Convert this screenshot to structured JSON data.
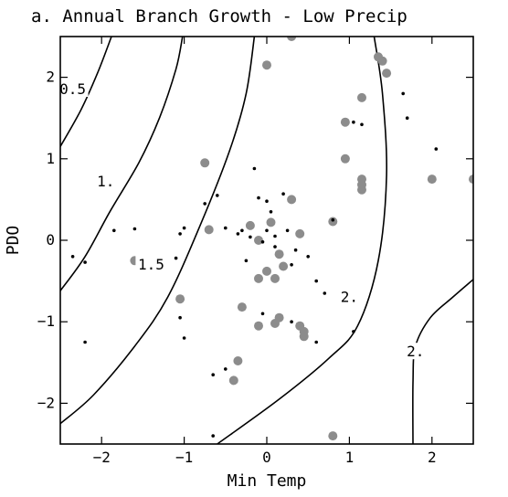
{
  "chart_data": {
    "type": "scatter",
    "title": "a. Annual Branch Growth - Low Precip",
    "xlabel": "Min Temp",
    "ylabel": "PDO",
    "xlim": [
      -2.5,
      2.5
    ],
    "ylim": [
      -2.5,
      2.5
    ],
    "xticks": [
      -2,
      -1,
      0,
      1,
      2
    ],
    "yticks": [
      -2,
      -1,
      0,
      1,
      2
    ],
    "xtick_labels": [
      "−2",
      "−1",
      "0",
      "1",
      "2"
    ],
    "ytick_labels": [
      "−2",
      "−1",
      "0",
      "1",
      "2"
    ],
    "grid": false,
    "contours": [
      {
        "label": "0.5",
        "label_at": [
          -2.35,
          1.85
        ],
        "points": [
          [
            -2.5,
            1.15
          ],
          [
            -2.25,
            1.6
          ],
          [
            -2.05,
            2.05
          ],
          [
            -1.88,
            2.5
          ]
        ]
      },
      {
        "label": "1.",
        "label_at": [
          -1.95,
          0.72
        ],
        "points": [
          [
            -2.5,
            -0.62
          ],
          [
            -2.2,
            -0.2
          ],
          [
            -1.9,
            0.35
          ],
          [
            -1.55,
            0.95
          ],
          [
            -1.3,
            1.5
          ],
          [
            -1.1,
            2.1
          ],
          [
            -1.02,
            2.5
          ]
        ]
      },
      {
        "label": "1.5",
        "label_at": [
          -1.4,
          -0.3
        ],
        "points": [
          [
            -2.5,
            -2.25
          ],
          [
            -2.1,
            -1.9
          ],
          [
            -1.6,
            -1.3
          ],
          [
            -1.2,
            -0.7
          ],
          [
            -0.8,
            0.2
          ],
          [
            -0.45,
            1.1
          ],
          [
            -0.25,
            1.8
          ],
          [
            -0.15,
            2.5
          ]
        ]
      },
      {
        "label": "2.",
        "label_at": [
          1.0,
          -0.7
        ],
        "points": [
          [
            -0.6,
            -2.5
          ],
          [
            0.15,
            -1.95
          ],
          [
            0.75,
            -1.45
          ],
          [
            1.1,
            -1.05
          ],
          [
            1.35,
            -0.25
          ],
          [
            1.45,
            0.8
          ],
          [
            1.4,
            1.8
          ],
          [
            1.3,
            2.5
          ]
        ]
      },
      {
        "label": "2.",
        "label_at": [
          1.8,
          -1.37
        ],
        "points": [
          [
            1.77,
            -2.5
          ],
          [
            1.77,
            -1.75
          ],
          [
            1.8,
            -1.3
          ],
          [
            1.98,
            -0.95
          ],
          [
            2.25,
            -0.7
          ],
          [
            2.5,
            -0.48
          ]
        ]
      }
    ],
    "series": [
      {
        "marker": "large-gray",
        "color": "#8c8c8c",
        "points": [
          [
            0.3,
            2.5
          ],
          [
            0.0,
            2.15
          ],
          [
            1.35,
            2.25
          ],
          [
            1.4,
            2.2
          ],
          [
            1.45,
            2.05
          ],
          [
            1.15,
            1.75
          ],
          [
            0.95,
            1.45
          ],
          [
            0.95,
            1.0
          ],
          [
            -0.75,
            0.95
          ],
          [
            1.15,
            0.75
          ],
          [
            1.15,
            0.68
          ],
          [
            1.15,
            0.62
          ],
          [
            2.0,
            0.75
          ],
          [
            2.5,
            0.75
          ],
          [
            0.3,
            0.5
          ],
          [
            0.8,
            0.23
          ],
          [
            0.05,
            0.22
          ],
          [
            -0.2,
            0.18
          ],
          [
            -0.7,
            0.13
          ],
          [
            0.4,
            0.08
          ],
          [
            -0.1,
            0.0
          ],
          [
            0.15,
            -0.17
          ],
          [
            -1.6,
            -0.25
          ],
          [
            0.2,
            -0.32
          ],
          [
            0.0,
            -0.38
          ],
          [
            -0.1,
            -0.47
          ],
          [
            0.1,
            -0.47
          ],
          [
            -1.05,
            -0.72
          ],
          [
            -0.3,
            -0.82
          ],
          [
            0.15,
            -0.95
          ],
          [
            0.1,
            -1.02
          ],
          [
            -0.1,
            -1.05
          ],
          [
            0.4,
            -1.05
          ],
          [
            0.45,
            -1.12
          ],
          [
            0.45,
            -1.18
          ],
          [
            -0.35,
            -1.48
          ],
          [
            -0.4,
            -1.72
          ],
          [
            0.8,
            -2.4
          ]
        ]
      },
      {
        "marker": "small-black",
        "color": "#000000",
        "points": [
          [
            1.65,
            1.8
          ],
          [
            1.7,
            1.5
          ],
          [
            1.05,
            1.45
          ],
          [
            1.15,
            1.42
          ],
          [
            2.05,
            1.12
          ],
          [
            -0.15,
            0.88
          ],
          [
            -0.6,
            0.55
          ],
          [
            -0.1,
            0.52
          ],
          [
            0.0,
            0.48
          ],
          [
            0.2,
            0.57
          ],
          [
            -0.75,
            0.45
          ],
          [
            0.05,
            0.35
          ],
          [
            0.8,
            0.25
          ],
          [
            -1.0,
            0.15
          ],
          [
            -1.05,
            0.08
          ],
          [
            -0.5,
            0.15
          ],
          [
            -0.3,
            0.12
          ],
          [
            0.0,
            0.12
          ],
          [
            0.25,
            0.12
          ],
          [
            0.1,
            0.05
          ],
          [
            -1.85,
            0.12
          ],
          [
            -1.6,
            0.14
          ],
          [
            -0.35,
            0.08
          ],
          [
            -0.2,
            0.04
          ],
          [
            -0.05,
            -0.02
          ],
          [
            0.1,
            -0.08
          ],
          [
            0.35,
            -0.12
          ],
          [
            -2.35,
            -0.2
          ],
          [
            -2.2,
            -0.27
          ],
          [
            -1.1,
            -0.22
          ],
          [
            -0.25,
            -0.25
          ],
          [
            0.5,
            -0.2
          ],
          [
            0.3,
            -0.3
          ],
          [
            0.6,
            -0.5
          ],
          [
            0.7,
            -0.65
          ],
          [
            -1.05,
            -0.95
          ],
          [
            -0.05,
            -0.9
          ],
          [
            0.3,
            -1.0
          ],
          [
            0.6,
            -1.25
          ],
          [
            1.05,
            -1.12
          ],
          [
            -2.2,
            -1.25
          ],
          [
            -1.0,
            -1.2
          ],
          [
            -0.65,
            -1.65
          ],
          [
            -0.5,
            -1.58
          ],
          [
            -0.65,
            -2.4
          ]
        ]
      }
    ]
  }
}
